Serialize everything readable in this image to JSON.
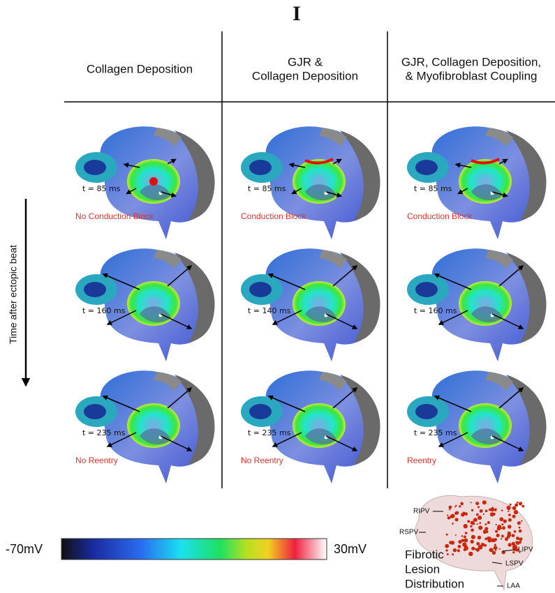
{
  "header": {
    "title": "I"
  },
  "columns": [
    {
      "heading": [
        "Collagen Deposition"
      ]
    },
    {
      "heading": [
        "GJR &",
        "Collagen Deposition"
      ]
    },
    {
      "heading": [
        "GJR, Collagen Deposition,",
        "& Myofibroblast Coupling"
      ]
    }
  ],
  "rows": [
    {
      "panels": [
        {
          "time": "t = 85 ms",
          "outcome": "No Conduction Block"
        },
        {
          "time": "t = 85 ms",
          "outcome": "Conduction Block"
        },
        {
          "time": "t = 85 ms",
          "outcome": "Conduction Block"
        }
      ]
    },
    {
      "panels": [
        {
          "time": "t = 160 ms"
        },
        {
          "time": "t = 140 ms"
        },
        {
          "time": "t = 160 ms"
        }
      ]
    },
    {
      "panels": [
        {
          "time": "t = 235 ms",
          "outcome": "No Reentry"
        },
        {
          "time": "t = 235 ms",
          "outcome": "No Reentry"
        },
        {
          "time": "t = 235 ms",
          "outcome": "Reentry"
        }
      ]
    }
  ],
  "side_label": "Time after ectopic beat",
  "colorbar": {
    "min_label": "-70mV",
    "max_label": "30mV"
  },
  "inset": {
    "title": [
      "Fibrotic",
      "Lesion",
      "Distribution"
    ],
    "labels": [
      "RIPV",
      "RSPV",
      "LIPV",
      "LSPV",
      "LAA"
    ]
  }
}
